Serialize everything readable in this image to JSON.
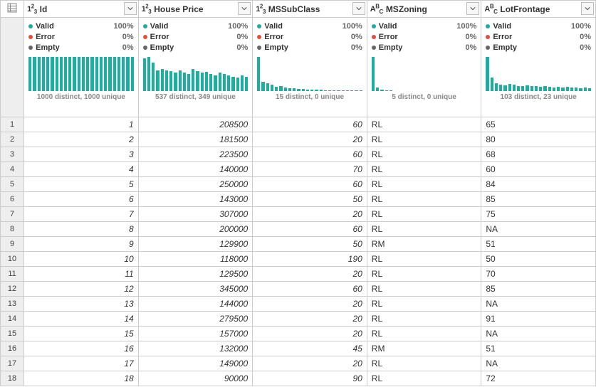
{
  "colors": {
    "valid": "#1aaf9e",
    "error": "#e74c3c",
    "empty": "#666666",
    "bar": "#1aaf9e"
  },
  "labels": {
    "valid": "Valid",
    "error": "Error",
    "empty": "Empty"
  },
  "columns": [
    {
      "name": "Id",
      "type": "number",
      "valid_pct": "100%",
      "error_pct": "0%",
      "empty_pct": "0%",
      "distinct": "1000 distinct, 1000 unique",
      "spark": [
        100,
        100,
        100,
        100,
        100,
        100,
        100,
        100,
        100,
        100,
        100,
        100,
        100,
        100,
        100,
        100,
        100,
        100,
        100,
        100,
        100,
        100,
        100,
        100
      ]
    },
    {
      "name": "House Price",
      "type": "number",
      "valid_pct": "100%",
      "error_pct": "0%",
      "empty_pct": "0%",
      "distinct": "537 distinct, 349 unique",
      "spark": [
        95,
        100,
        84,
        60,
        64,
        60,
        58,
        54,
        60,
        54,
        50,
        64,
        58,
        54,
        56,
        50,
        46,
        54,
        50,
        46,
        42,
        40,
        46,
        42
      ]
    },
    {
      "name": "MSSubClass",
      "type": "number",
      "valid_pct": "100%",
      "error_pct": "0%",
      "empty_pct": "0%",
      "distinct": "15 distinct, 0 unique",
      "spark": [
        100,
        28,
        22,
        18,
        12,
        14,
        10,
        8,
        8,
        6,
        6,
        5,
        5,
        4,
        4,
        3,
        3,
        3,
        3,
        3,
        3,
        3,
        3,
        3
      ]
    },
    {
      "name": "MSZoning",
      "type": "text",
      "valid_pct": "100%",
      "error_pct": "0%",
      "empty_pct": "0%",
      "distinct": "5 distinct, 0 unique",
      "spark": [
        100,
        10,
        5,
        3,
        2,
        0,
        0,
        0,
        0,
        0,
        0,
        0,
        0,
        0,
        0,
        0,
        0,
        0,
        0,
        0,
        0,
        0,
        0,
        0
      ]
    },
    {
      "name": "LotFrontage",
      "type": "text",
      "valid_pct": "100%",
      "error_pct": "0%",
      "empty_pct": "0%",
      "distinct": "103 distinct, 23 unique",
      "spark": [
        100,
        40,
        22,
        18,
        16,
        20,
        18,
        15,
        14,
        16,
        15,
        14,
        12,
        15,
        12,
        10,
        12,
        10,
        12,
        10,
        10,
        8,
        10,
        8
      ]
    }
  ],
  "rows": [
    {
      "n": "1",
      "cells": [
        "1",
        "208500",
        "60",
        "RL",
        "65"
      ]
    },
    {
      "n": "2",
      "cells": [
        "2",
        "181500",
        "20",
        "RL",
        "80"
      ]
    },
    {
      "n": "3",
      "cells": [
        "3",
        "223500",
        "60",
        "RL",
        "68"
      ]
    },
    {
      "n": "4",
      "cells": [
        "4",
        "140000",
        "70",
        "RL",
        "60"
      ]
    },
    {
      "n": "5",
      "cells": [
        "5",
        "250000",
        "60",
        "RL",
        "84"
      ]
    },
    {
      "n": "6",
      "cells": [
        "6",
        "143000",
        "50",
        "RL",
        "85"
      ]
    },
    {
      "n": "7",
      "cells": [
        "7",
        "307000",
        "20",
        "RL",
        "75"
      ]
    },
    {
      "n": "8",
      "cells": [
        "8",
        "200000",
        "60",
        "RL",
        "NA"
      ]
    },
    {
      "n": "9",
      "cells": [
        "9",
        "129900",
        "50",
        "RM",
        "51"
      ]
    },
    {
      "n": "10",
      "cells": [
        "10",
        "118000",
        "190",
        "RL",
        "50"
      ]
    },
    {
      "n": "11",
      "cells": [
        "11",
        "129500",
        "20",
        "RL",
        "70"
      ]
    },
    {
      "n": "12",
      "cells": [
        "12",
        "345000",
        "60",
        "RL",
        "85"
      ]
    },
    {
      "n": "13",
      "cells": [
        "13",
        "144000",
        "20",
        "RL",
        "NA"
      ]
    },
    {
      "n": "14",
      "cells": [
        "14",
        "279500",
        "20",
        "RL",
        "91"
      ]
    },
    {
      "n": "15",
      "cells": [
        "15",
        "157000",
        "20",
        "RL",
        "NA"
      ]
    },
    {
      "n": "16",
      "cells": [
        "16",
        "132000",
        "45",
        "RM",
        "51"
      ]
    },
    {
      "n": "17",
      "cells": [
        "17",
        "149000",
        "20",
        "RL",
        "NA"
      ]
    },
    {
      "n": "18",
      "cells": [
        "18",
        "90000",
        "90",
        "RL",
        "72"
      ]
    }
  ]
}
